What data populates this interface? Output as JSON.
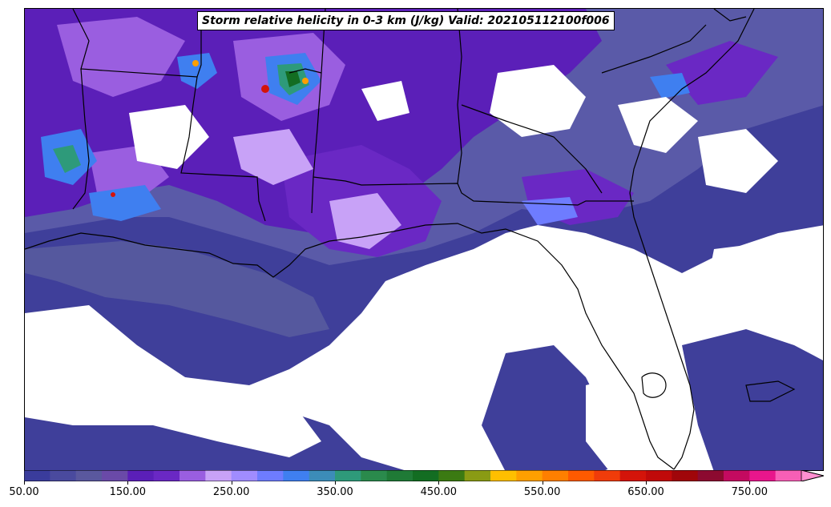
{
  "title": "Storm relative helicity in 0-3 km (J/kg) Valid: 202105112100f006",
  "colorbar": {
    "min": 50,
    "max": 800,
    "step": 25,
    "extend": "max",
    "tick_values": [
      50,
      150,
      250,
      350,
      450,
      550,
      650,
      750
    ],
    "tick_labels": [
      "50.00",
      "150.00",
      "250.00",
      "350.00",
      "450.00",
      "550.00",
      "650.00",
      "750.00"
    ],
    "colors": [
      "#3a3c9c",
      "#4a4a9e",
      "#5a589e",
      "#6a4aa8",
      "#5b1fb8",
      "#6a28c4",
      "#9a5ee0",
      "#c8a2f7",
      "#a08cff",
      "#6e7cff",
      "#3f7ff0",
      "#3c8cb8",
      "#2e9a7a",
      "#2a8a4c",
      "#1f7a36",
      "#136d22",
      "#3b7a12",
      "#8a9b14",
      "#ffbf00",
      "#ff9f00",
      "#ff7f00",
      "#ff5a00",
      "#f03c0a",
      "#d4140a",
      "#c00a0a",
      "#a0060a",
      "#8c0a30",
      "#c40a60",
      "#e8168c",
      "#f75fb6",
      "#ff8fd0"
    ]
  },
  "map": {
    "region": "Southeastern United States and Gulf of Mexico",
    "field": "0-3 km storm relative helicity",
    "units": "J/kg"
  }
}
